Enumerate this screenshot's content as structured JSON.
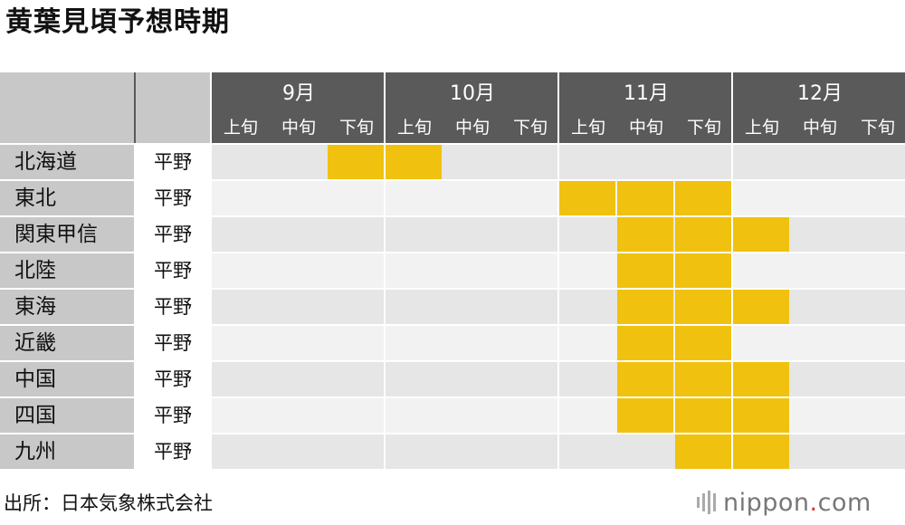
{
  "title": "黄葉見頃予想時期",
  "source": "出所：日本気象株式会社",
  "logo": {
    "prefix": "nippon",
    "dot": ".",
    "suffix": "com"
  },
  "colors": {
    "header": "#5a5a5a",
    "region": "#c8c8c8",
    "peak": "#f0c20f",
    "rowLight": "#e6e6e6",
    "rowDark": "#f2f2f2"
  },
  "chart_data": {
    "type": "heatmap",
    "months": [
      "9月",
      "10月",
      "11月",
      "12月"
    ],
    "dekads": [
      "上旬",
      "中旬",
      "下旬"
    ],
    "rows": [
      {
        "region": "北海道",
        "type": "平野",
        "start": 2,
        "end": 3
      },
      {
        "region": "東北",
        "type": "平野",
        "start": 6,
        "end": 8
      },
      {
        "region": "関東甲信",
        "type": "平野",
        "start": 7,
        "end": 9
      },
      {
        "region": "北陸",
        "type": "平野",
        "start": 7,
        "end": 8
      },
      {
        "region": "東海",
        "type": "平野",
        "start": 7,
        "end": 9
      },
      {
        "region": "近畿",
        "type": "平野",
        "start": 7,
        "end": 8
      },
      {
        "region": "中国",
        "type": "平野",
        "start": 7,
        "end": 9
      },
      {
        "region": "四国",
        "type": "平野",
        "start": 7,
        "end": 9
      },
      {
        "region": "九州",
        "type": "平野",
        "start": 8,
        "end": 9
      }
    ]
  }
}
